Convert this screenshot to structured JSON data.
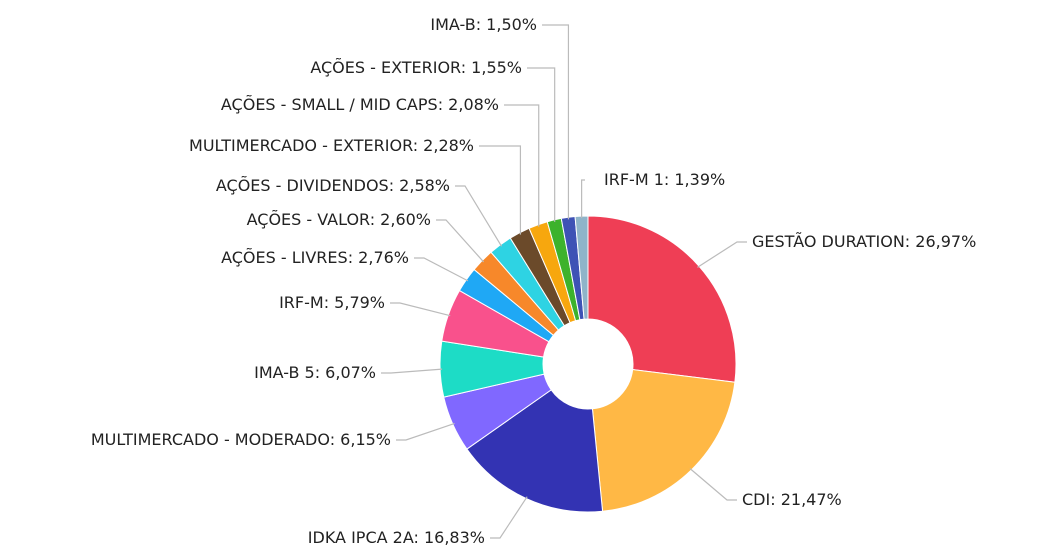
{
  "chart_data": {
    "type": "pie",
    "donut": true,
    "separator": ": ",
    "categories": [
      "GESTÃO DURATION",
      "CDI",
      "IDKA IPCA 2A",
      "MULTIMERCADO - MODERADO",
      "IMA-B 5",
      "IRF-M",
      "AÇÕES - LIVRES",
      "AÇÕES - VALOR",
      "AÇÕES - DIVIDENDOS",
      "MULTIMERCADO - EXTERIOR",
      "AÇÕES - SMALL / MID CAPS",
      "AÇÕES - EXTERIOR",
      "IMA-B",
      "IRF-M 1"
    ],
    "values": [
      26.97,
      21.47,
      16.83,
      6.15,
      6.07,
      5.79,
      2.76,
      2.6,
      2.58,
      2.28,
      2.08,
      1.55,
      1.5,
      1.39
    ],
    "value_labels": [
      "26,97%",
      "21,47%",
      "16,83%",
      "6,15%",
      "6,07%",
      "5,79%",
      "2,76%",
      "2,60%",
      "2,58%",
      "2,28%",
      "2,08%",
      "1,55%",
      "1,50%",
      "1,39%"
    ],
    "colors": [
      "#ef3e55",
      "#ffb845",
      "#3333b3",
      "#8068ff",
      "#1ddcc6",
      "#f9518c",
      "#1fa8f5",
      "#f7882a",
      "#2ed3e3",
      "#6b4a2a",
      "#f7a70e",
      "#3db22c",
      "#3e52b5",
      "#8fb4c9"
    ]
  }
}
